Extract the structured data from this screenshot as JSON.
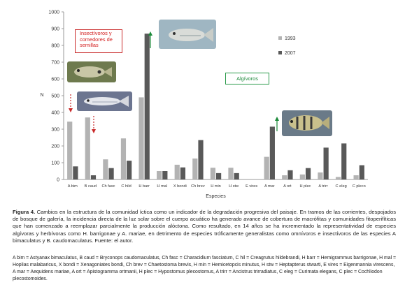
{
  "chart_data": {
    "type": "bar",
    "ylabel": "N",
    "xlabel": "Especies",
    "ylim": [
      0,
      1000
    ],
    "yticks": [
      0,
      100,
      200,
      300,
      400,
      500,
      600,
      700,
      800,
      900,
      1000
    ],
    "categories": [
      "A bim",
      "B caud",
      "Ch fasc",
      "C hild",
      "H barr",
      "H mal",
      "X bondi",
      "Ch brev",
      "H min",
      "H stw",
      "E vires",
      "A mar",
      "A ort",
      "H plec",
      "A trirr",
      "C eleg",
      "C pleco"
    ],
    "series": [
      {
        "name": "1993",
        "color": "#b3b3b3",
        "values": [
          345,
          370,
          120,
          245,
          490,
          50,
          88,
          125,
          70,
          70,
          0,
          135,
          25,
          30,
          42,
          15,
          25
        ]
      },
      {
        "name": "2007",
        "color": "#595959",
        "values": [
          78,
          25,
          68,
          112,
          870,
          50,
          72,
          235,
          38,
          38,
          0,
          315,
          55,
          68,
          190,
          215,
          85
        ]
      }
    ],
    "legend_position": "upper-right",
    "annotations": {
      "insectivores": "Insectívoros y comedores de semillas",
      "algivores": "Algívoros"
    },
    "colors": {
      "red": "#c92a2a",
      "green": "#1c8a3a"
    }
  },
  "caption": {
    "label": "Figura 4.",
    "text": " Cambios en la estructura de la comunidad íctica como un indicador de la degradación progresiva del paisaje. En tramos de las corrientes, despojados de bosque de galería, la incidencia directa de la luz solar sobre el cuerpo acuático ha generado avance de cobertura de macrófitas y comunidades fitoperifíticas que han comenzado a reemplazar parcialmente la producción alóctona. Como resultado, en 14 años se ha incrementado la representatividad de especies algívoras y herbívoras como H. barrigonae y A. mariae, en detrimento de especies tróficamente generalistas como omnívoros e insectívoros de las especies A bimaculatus y B. caudomaculatus. Fuente: el autor."
  },
  "abbreviations": "A bim = Astyanax bimaculatus, B caud = Bryconops caudomaculatus, Ch fasc = Characidium fasciatum, C hil = Creagrutus hildebrandi, H barr = Hemigrammus barrigonae, H mal = Hoplias malabaricus, X bondi = Xenagoniates bondi, Ch brev = Chaetostoma brevis, H min = Hemicetopcis minutus, H stw = Heptapterus stwarti, E vires = Eigenmannia virescens, A mar = Aequidens mariae, A ort = Apistogramma ortmanii, H plec = Hypostomus plecostomus, A trirr = Ancistrus trirradiatus, C eleg = Curimata elegans, C plec = Cochliodon plecostomoides."
}
